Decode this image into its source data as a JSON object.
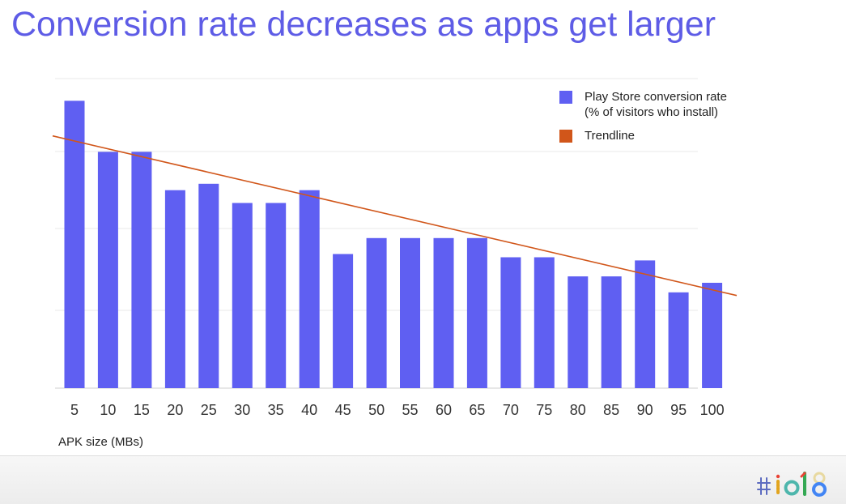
{
  "slide": {
    "title": "Conversion rate decreases as apps get larger"
  },
  "colors": {
    "title": "#5e5ce6",
    "bar": "#5f5ff2",
    "trendline": "#d1561a",
    "grid": "#e8e8e8"
  },
  "chart_data": {
    "type": "bar",
    "title": "",
    "xlabel": "APK size (MBs)",
    "ylabel": "",
    "ylim": [
      0,
      10
    ],
    "grid": true,
    "legend_position": "top-right",
    "categories": [
      "5",
      "10",
      "15",
      "20",
      "25",
      "30",
      "35",
      "40",
      "45",
      "50",
      "55",
      "60",
      "65",
      "70",
      "75",
      "80",
      "85",
      "90",
      "95",
      "100"
    ],
    "series": [
      {
        "name": "Play Store conversion rate\n(% of visitors who install)",
        "legend_line1": "Play Store conversion rate",
        "legend_line2": "(% of visitors who install)",
        "values": [
          9.0,
          7.4,
          7.4,
          6.2,
          6.4,
          5.8,
          5.8,
          6.2,
          4.2,
          4.7,
          4.7,
          4.7,
          4.7,
          4.1,
          4.1,
          3.5,
          3.5,
          4.0,
          3.0,
          3.3
        ]
      }
    ],
    "trendline": {
      "name": "Trendline",
      "start_value": 7.9,
      "end_value": 2.9
    }
  },
  "footer": {
    "logo_text": "#io18"
  }
}
